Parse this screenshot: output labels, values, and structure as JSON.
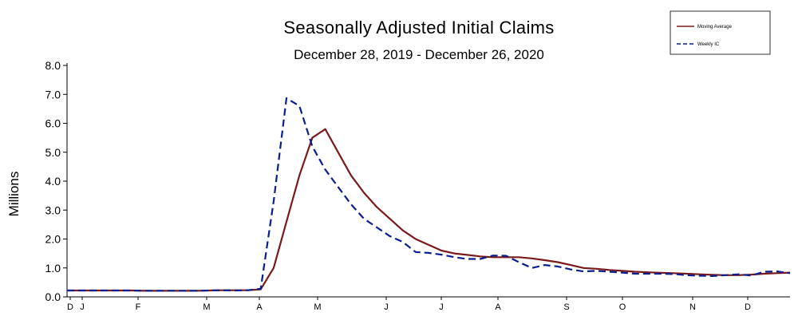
{
  "chart_data": {
    "type": "line",
    "title": "Seasonally Adjusted Initial Claims",
    "subtitle": "December 28, 2019 - December 26, 2020",
    "ylabel": "Millions",
    "ylim": [
      0,
      8
    ],
    "yticks": [
      "0.0",
      "1.0",
      "2.0",
      "3.0",
      "4.0",
      "5.0",
      "6.0",
      "7.0",
      "8.0"
    ],
    "month_labels": [
      "D",
      "J",
      "F",
      "M",
      "A",
      "M",
      "J",
      "J",
      "A",
      "S",
      "O",
      "N",
      "D"
    ],
    "legend_position": "top-right",
    "grid": false,
    "series": [
      {
        "name": "Moving Average",
        "color": "#7B1A1A",
        "dash": "solid",
        "values": [
          0.22,
          0.22,
          0.22,
          0.22,
          0.22,
          0.22,
          0.21,
          0.21,
          0.21,
          0.21,
          0.21,
          0.22,
          0.23,
          0.23,
          0.23,
          0.26,
          1.0,
          2.6,
          4.2,
          5.5,
          5.8,
          5.0,
          4.2,
          3.6,
          3.1,
          2.7,
          2.3,
          2.0,
          1.8,
          1.6,
          1.5,
          1.45,
          1.4,
          1.37,
          1.37,
          1.37,
          1.33,
          1.27,
          1.2,
          1.1,
          1.0,
          0.97,
          0.93,
          0.9,
          0.87,
          0.85,
          0.83,
          0.82,
          0.8,
          0.78,
          0.76,
          0.75,
          0.75,
          0.77,
          0.8,
          0.82,
          0.84
        ]
      },
      {
        "name": "Weekly IC",
        "color": "#0A1F8F",
        "dash": "dashed",
        "values": [
          0.22,
          0.22,
          0.22,
          0.22,
          0.22,
          0.22,
          0.21,
          0.21,
          0.21,
          0.21,
          0.21,
          0.22,
          0.23,
          0.22,
          0.23,
          0.28,
          3.3,
          6.87,
          6.6,
          5.2,
          4.4,
          3.8,
          3.2,
          2.7,
          2.4,
          2.1,
          1.9,
          1.55,
          1.52,
          1.46,
          1.37,
          1.31,
          1.31,
          1.43,
          1.42,
          1.2,
          1.0,
          1.1,
          1.05,
          0.95,
          0.88,
          0.9,
          0.87,
          0.84,
          0.8,
          0.8,
          0.8,
          0.79,
          0.75,
          0.73,
          0.72,
          0.75,
          0.78,
          0.74,
          0.87,
          0.88,
          0.82
        ]
      }
    ]
  }
}
